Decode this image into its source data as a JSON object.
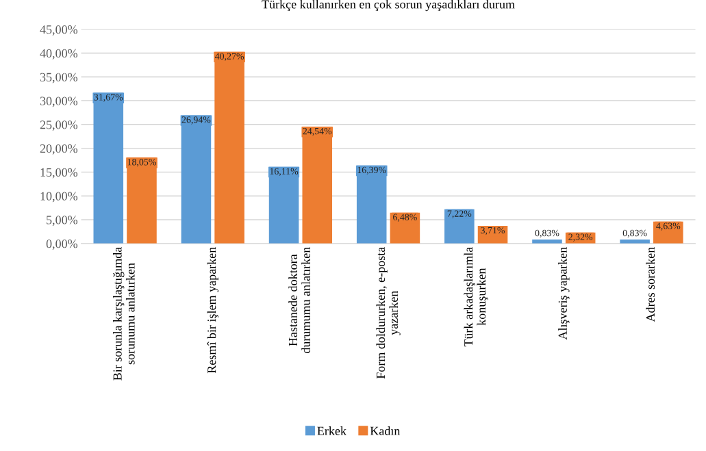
{
  "chart_data": {
    "type": "bar",
    "title": "Türkçe kullanırken en çok sorun yaşadıkları durum",
    "categories": [
      "Bir sorunla karşılaştığımda\nsorunumu anlatırken",
      "Resmî bir işlem yaparken",
      "Hastanede doktora\ndurumumu anlatırken",
      "Form doldururken, e-posta\nyazarken",
      "Türk arkadaşlarımla\nkonuşurken",
      "Alışveriş yaparken",
      "Adres sorarken"
    ],
    "series": [
      {
        "name": "Erkek",
        "color": "#5b9bd5",
        "values": [
          31.67,
          26.94,
          16.11,
          16.39,
          7.22,
          0.83,
          0.83
        ],
        "value_labels": [
          "31,67%",
          "26,94%",
          "16,11%",
          "16,39%",
          "7,22%",
          "0,83%",
          "0,83%"
        ]
      },
      {
        "name": "Kadın",
        "color": "#ed7d31",
        "values": [
          18.05,
          40.27,
          24.54,
          6.48,
          3.71,
          2.32,
          4.63
        ],
        "value_labels": [
          "18,05%",
          "40,27%",
          "24,54%",
          "6,48%",
          "3,71%",
          "2,32%",
          "4,63%"
        ]
      }
    ],
    "ylim": [
      0,
      45
    ],
    "yticks": [
      {
        "value": 0,
        "label": "0,00%"
      },
      {
        "value": 5,
        "label": "5,00%"
      },
      {
        "value": 10,
        "label": "10,00%"
      },
      {
        "value": 15,
        "label": "15,00%"
      },
      {
        "value": 20,
        "label": "20,00%"
      },
      {
        "value": 25,
        "label": "25,00%"
      },
      {
        "value": 30,
        "label": "30,00%"
      },
      {
        "value": 35,
        "label": "35,00%"
      },
      {
        "value": 40,
        "label": "40,00%"
      },
      {
        "value": 45,
        "label": "45,00%"
      }
    ],
    "grid": "y",
    "legend": "bottom"
  }
}
